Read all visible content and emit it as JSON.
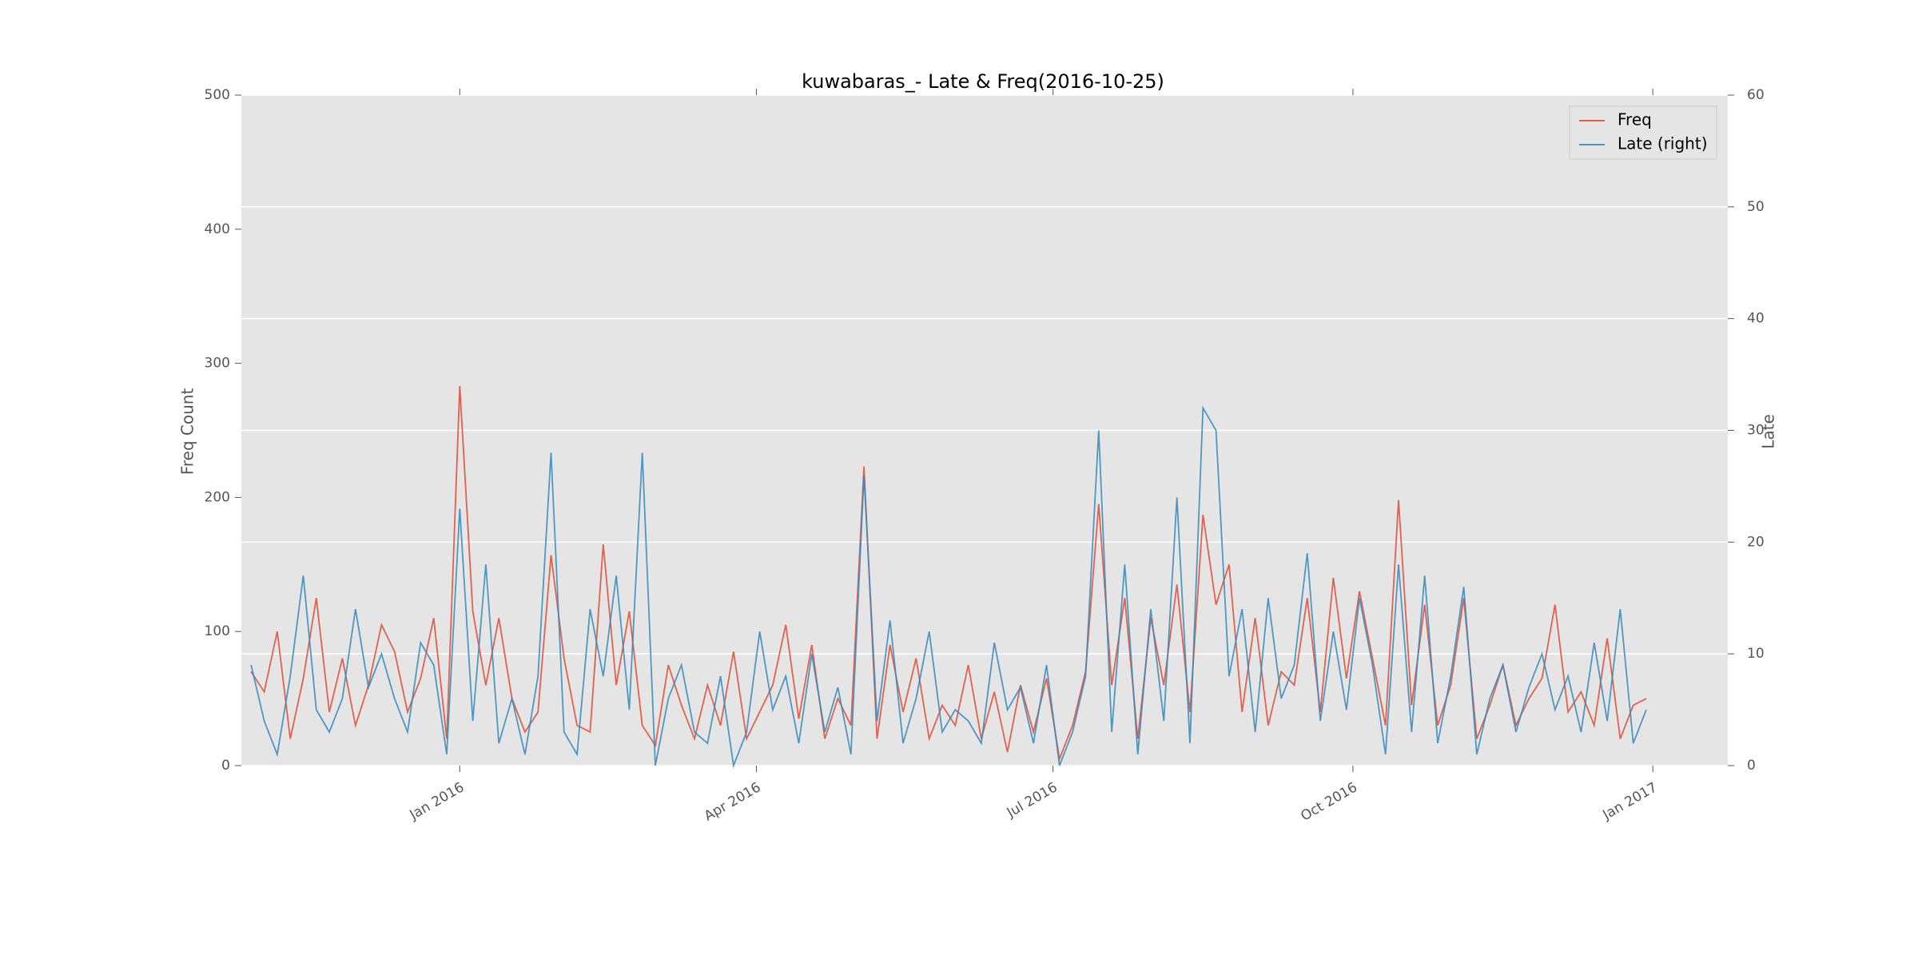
{
  "chart_data": {
    "type": "line",
    "title": "kuwabaras_- Late & Freq(2016-10-25)",
    "ylabel": "Freq Count",
    "y2label": "Late",
    "x": [
      -64,
      -60,
      -56,
      -52,
      -48,
      -44,
      -40,
      -36,
      -32,
      -28,
      -24,
      -20,
      -16,
      -12,
      -8,
      -4,
      0,
      4,
      8,
      12,
      16,
      20,
      24,
      28,
      32,
      36,
      40,
      44,
      48,
      52,
      56,
      60,
      64,
      68,
      72,
      76,
      80,
      84,
      88,
      92,
      96,
      100,
      104,
      108,
      112,
      116,
      120,
      124,
      128,
      132,
      136,
      140,
      144,
      148,
      152,
      156,
      160,
      164,
      168,
      172,
      176,
      180,
      184,
      188,
      192,
      196,
      200,
      204,
      208,
      212,
      216,
      220,
      224,
      228,
      232,
      236,
      240,
      244,
      248,
      252,
      256,
      260,
      264,
      268,
      272,
      276,
      280,
      284,
      288,
      292,
      296,
      300,
      304,
      308,
      312,
      316,
      320,
      324,
      328,
      332,
      336,
      340,
      344,
      348,
      352,
      356,
      360,
      364
    ],
    "series": [
      {
        "name": "Freq",
        "color": "#e24a33",
        "values": [
          70,
          55,
          100,
          20,
          65,
          125,
          40,
          80,
          30,
          60,
          105,
          85,
          40,
          65,
          110,
          20,
          283,
          115,
          60,
          110,
          50,
          25,
          40,
          157,
          80,
          30,
          25,
          165,
          60,
          115,
          30,
          15,
          75,
          45,
          20,
          60,
          30,
          85,
          20,
          40,
          60,
          105,
          35,
          90,
          20,
          50,
          30,
          223,
          20,
          90,
          40,
          80,
          20,
          45,
          30,
          75,
          20,
          55,
          10,
          60,
          25,
          65,
          5,
          30,
          70,
          195,
          60,
          125,
          20,
          110,
          60,
          135,
          40,
          187,
          120,
          150,
          40,
          110,
          30,
          70,
          60,
          125,
          40,
          140,
          65,
          130,
          80,
          30,
          198,
          45,
          120,
          30,
          60,
          125,
          20,
          45,
          75,
          30,
          50,
          65,
          120,
          40,
          55,
          30,
          95,
          20,
          45,
          50
        ]
      },
      {
        "name": "Late (right)",
        "color": "#348abd",
        "axis": "y2",
        "values": [
          9,
          4,
          1,
          8,
          17,
          5,
          3,
          6,
          14,
          7,
          10,
          6,
          3,
          11,
          9,
          1,
          23,
          4,
          18,
          2,
          6,
          1,
          8,
          28,
          3,
          1,
          14,
          8,
          17,
          5,
          28,
          0,
          6,
          9,
          3,
          2,
          8,
          0,
          3,
          12,
          5,
          8,
          2,
          10,
          3,
          7,
          1,
          26,
          4,
          13,
          2,
          6,
          12,
          3,
          5,
          4,
          2,
          11,
          5,
          7,
          2,
          9,
          0,
          3,
          8,
          30,
          3,
          18,
          1,
          14,
          4,
          24,
          2,
          32,
          30,
          8,
          14,
          3,
          15,
          6,
          9,
          19,
          4,
          12,
          5,
          15,
          9,
          1,
          18,
          3,
          17,
          2,
          8,
          16,
          1,
          6,
          9,
          3,
          7,
          10,
          5,
          8,
          3,
          11,
          4,
          14,
          2,
          5
        ]
      }
    ],
    "xlim": [
      -67,
      389
    ],
    "xticks": [
      {
        "value": 0,
        "label": "Jan 2016"
      },
      {
        "value": 91,
        "label": "Apr 2016"
      },
      {
        "value": 182,
        "label": "Jul 2016"
      },
      {
        "value": 274,
        "label": "Oct 2016"
      },
      {
        "value": 366,
        "label": "Jan 2017"
      }
    ],
    "ylim": [
      0,
      500
    ],
    "yticks": [
      0,
      100,
      200,
      300,
      400,
      500
    ],
    "y2lim": [
      0,
      60
    ],
    "y2ticks": [
      0,
      10,
      20,
      30,
      40,
      50,
      60
    ],
    "grid_axis": "y2",
    "legend": "upper right",
    "background": "#e5e5e5"
  }
}
